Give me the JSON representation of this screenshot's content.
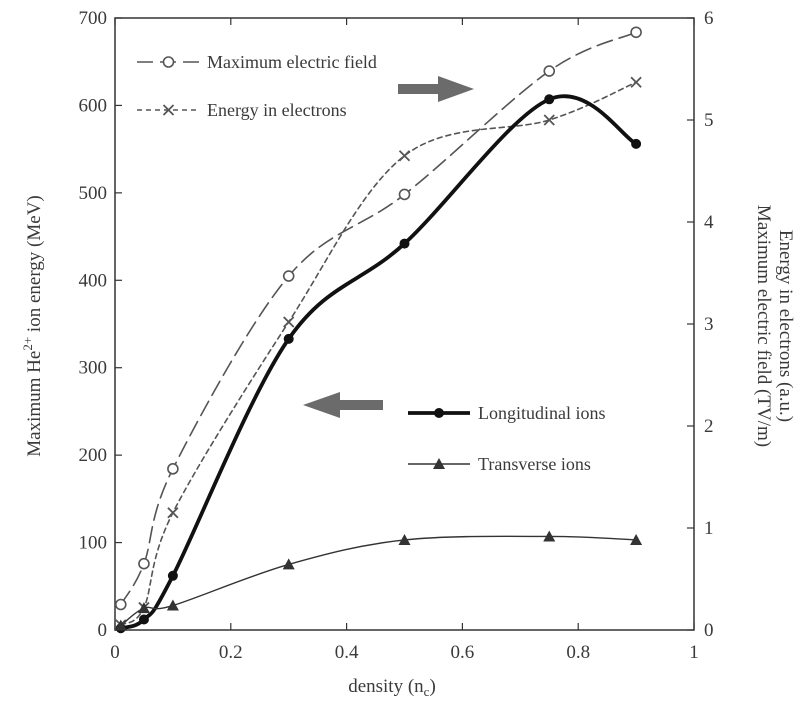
{
  "chart_data": {
    "type": "line",
    "title": "",
    "xlabel": "density (n",
    "xlabel_sub": "c",
    "xlabel_end": ")",
    "ylabel_left_pre": "Maximum He",
    "ylabel_left_sup": "2+",
    "ylabel_left_post": " ion energy (MeV)",
    "ylabel_right_line1": "Maximum electric field (TV/m)",
    "ylabel_right_line2": "Energy in electrons (a.u.)",
    "xlim": [
      0,
      1
    ],
    "ylim_left": [
      0,
      700
    ],
    "ylim_right": [
      0,
      6
    ],
    "x_ticks": [
      0,
      0.2,
      0.4,
      0.6,
      0.8,
      1
    ],
    "x_tick_labels": [
      "0",
      "0.2",
      "0.4",
      "0.6",
      "0.8",
      "1"
    ],
    "y_left_ticks": [
      0,
      100,
      200,
      300,
      400,
      500,
      600,
      700
    ],
    "y_left_tick_labels": [
      "0",
      "100",
      "200",
      "300",
      "400",
      "500",
      "600",
      "700"
    ],
    "y_right_ticks": [
      0,
      1,
      2,
      3,
      4,
      5,
      6
    ],
    "y_right_tick_labels": [
      "0",
      "1",
      "2",
      "3",
      "4",
      "5",
      "6"
    ],
    "grid": false,
    "series": [
      {
        "name": "Maximum electric field",
        "axis": "right",
        "style": "long-dash",
        "marker": "open-circle",
        "color": "#555555",
        "x": [
          0.01,
          0.05,
          0.1,
          0.3,
          0.5,
          0.75,
          0.9
        ],
        "y": [
          0.25,
          0.65,
          1.58,
          3.47,
          4.27,
          5.48,
          5.86
        ]
      },
      {
        "name": "Energy in electrons",
        "axis": "right",
        "style": "short-dash",
        "marker": "x",
        "color": "#555555",
        "x": [
          0.01,
          0.05,
          0.1,
          0.3,
          0.5,
          0.75,
          0.9
        ],
        "y": [
          0.05,
          0.22,
          1.15,
          3.02,
          4.65,
          5.0,
          5.37
        ]
      },
      {
        "name": "Longitudinal ions",
        "axis": "left",
        "style": "thick-solid",
        "marker": "filled-circle",
        "color": "#111111",
        "x": [
          0.01,
          0.05,
          0.1,
          0.3,
          0.5,
          0.75,
          0.9
        ],
        "y": [
          2,
          12,
          62,
          333,
          442,
          607,
          556
        ]
      },
      {
        "name": "Transverse ions",
        "axis": "left",
        "style": "thin-solid",
        "marker": "filled-triangle",
        "color": "#333333",
        "x": [
          0.01,
          0.05,
          0.1,
          0.3,
          0.5,
          0.75,
          0.9
        ],
        "y": [
          5,
          25,
          28,
          75,
          103,
          107,
          103
        ]
      }
    ],
    "legend_upper_location": "top-left",
    "legend_lower_location": "center-right",
    "annotations": [
      {
        "type": "arrow",
        "direction": "right",
        "meaning": "fields/electrons use right axis"
      },
      {
        "type": "arrow",
        "direction": "left",
        "meaning": "ions use left axis"
      }
    ]
  }
}
